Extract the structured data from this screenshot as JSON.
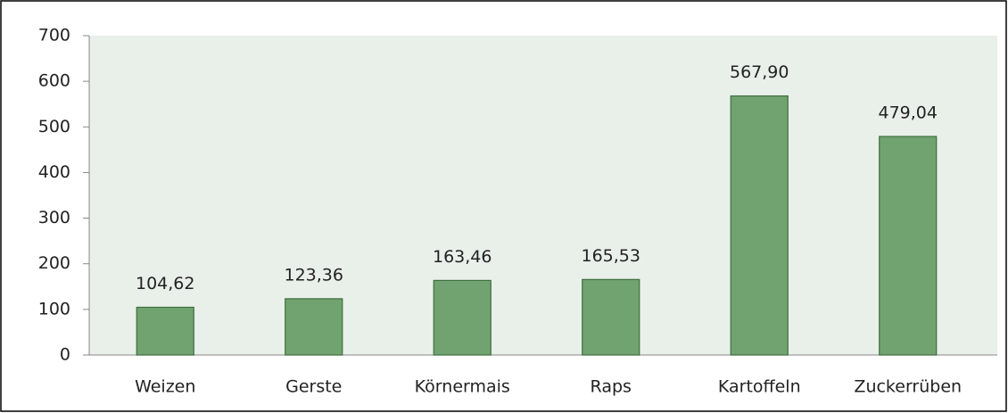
{
  "chart_data": {
    "type": "bar",
    "categories": [
      "Weizen",
      "Gerste",
      "Körnermais",
      "Raps",
      "Kartoffeln",
      "Zuckerrüben"
    ],
    "values": [
      104.62,
      123.36,
      163.46,
      165.53,
      567.9,
      479.04
    ],
    "value_labels": [
      "104,62",
      "123,36",
      "163,46",
      "165,53",
      "567,90",
      "479,04"
    ],
    "color": "#70a370",
    "ylim": [
      0,
      700
    ],
    "yticks": [
      0,
      100,
      200,
      300,
      400,
      500,
      600,
      700
    ]
  }
}
